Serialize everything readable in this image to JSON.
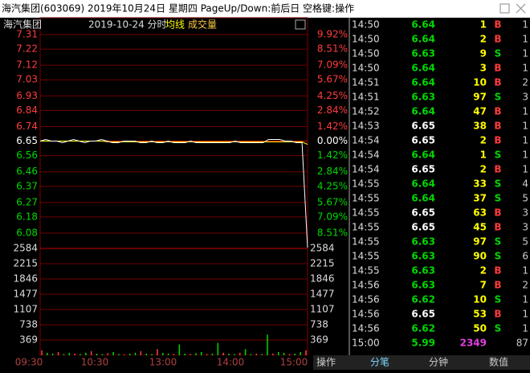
{
  "title_bar": {
    "title": "海汽集团(603069)  2019年10月24日 星期四 PageUp/Down:前后日 空格键:操作"
  },
  "chart_header": {
    "name": "海汽集团",
    "date": "2019-10-24 分时",
    "avg_label": "均线",
    "vol_label": "成交量"
  },
  "price_axis": {
    "ylim": [
      6.08,
      7.31
    ],
    "ticks": [
      7.31,
      7.22,
      7.12,
      7.03,
      6.93,
      6.84,
      6.74,
      6.65,
      6.56,
      6.46,
      6.37,
      6.27,
      6.18,
      6.08
    ],
    "pct_labels": [
      "9.92%",
      "8.51%",
      "7.09%",
      "5.67%",
      "4.25%",
      "2.84%",
      "1.42%",
      "0.00%",
      "1.42%",
      "2.84%",
      "4.25%",
      "5.67%",
      "7.09%",
      "8.51%"
    ]
  },
  "volume_axis": {
    "ylim": [
      0,
      2584
    ],
    "ticks": [
      2584,
      2215,
      1846,
      1477,
      1107,
      738,
      369
    ]
  },
  "price_line": [
    6.65,
    6.66,
    6.65,
    6.65,
    6.64,
    6.65,
    6.66,
    6.65,
    6.64,
    6.65,
    6.65,
    6.66,
    6.65,
    6.64,
    6.64,
    6.65,
    6.65,
    6.65,
    6.64,
    6.64,
    6.65,
    6.64,
    6.64,
    6.65,
    6.64,
    6.64,
    6.64,
    6.65,
    6.64,
    6.64,
    6.64,
    6.64,
    6.64,
    6.64,
    6.64,
    6.65,
    6.64,
    6.64,
    6.64,
    6.64,
    6.64,
    6.66,
    6.66,
    6.66,
    6.65,
    6.65,
    6.64,
    6.64,
    5.99
  ],
  "avg_line": [
    6.65,
    6.65,
    6.65,
    6.65,
    6.65,
    6.65,
    6.65,
    6.65,
    6.65,
    6.65,
    6.65,
    6.65,
    6.646,
    6.645,
    6.645,
    6.645,
    6.645,
    6.645,
    6.645,
    6.645,
    6.645,
    6.645,
    6.645,
    6.645,
    6.645,
    6.645,
    6.645,
    6.645,
    6.645,
    6.645,
    6.645,
    6.645,
    6.645,
    6.645,
    6.645,
    6.645,
    6.645,
    6.645,
    6.645,
    6.645,
    6.645,
    6.645,
    6.645,
    6.645,
    6.645,
    6.645,
    6.645,
    6.645,
    6.63
  ],
  "volume_bars": [
    120,
    60,
    40,
    80,
    30,
    60,
    40,
    30,
    60,
    100,
    40,
    30,
    50,
    80,
    30,
    20,
    40,
    60,
    100,
    40,
    30,
    150,
    60,
    40,
    30,
    260,
    40,
    30,
    50,
    80,
    30,
    40,
    300,
    60,
    40,
    30,
    60,
    150,
    30,
    40,
    30,
    500,
    40,
    80,
    60,
    30,
    40,
    80,
    120
  ],
  "time_labels": [
    "09:30",
    "10:30",
    "13:00",
    "14:00",
    "15:00"
  ],
  "trades": [
    [
      "14:50",
      "6.64",
      "1",
      "B",
      "1"
    ],
    [
      "14:50",
      "6.64",
      "2",
      "B",
      "1"
    ],
    [
      "14:50",
      "6.63",
      "9",
      "S",
      "1"
    ],
    [
      "14:50",
      "6.64",
      "3",
      "B",
      "1"
    ],
    [
      "14:51",
      "6.64",
      "10",
      "B",
      "2"
    ],
    [
      "14:51",
      "6.63",
      "97",
      "S",
      "3"
    ],
    [
      "14:52",
      "6.64",
      "47",
      "B",
      "1"
    ],
    [
      "14:53",
      "6.65",
      "38",
      "B",
      "1"
    ],
    [
      "14:54",
      "6.65",
      "2",
      "B",
      "1"
    ],
    [
      "14:54",
      "6.64",
      "1",
      "S",
      "1"
    ],
    [
      "14:54",
      "6.65",
      "2",
      "B",
      "1"
    ],
    [
      "14:55",
      "6.64",
      "33",
      "S",
      "4"
    ],
    [
      "14:55",
      "6.64",
      "37",
      "S",
      "5"
    ],
    [
      "14:55",
      "6.65",
      "63",
      "B",
      "3"
    ],
    [
      "14:55",
      "6.65",
      "45",
      "B",
      "3"
    ],
    [
      "14:55",
      "6.63",
      "97",
      "S",
      "5"
    ],
    [
      "14:55",
      "6.63",
      "90",
      "S",
      "6"
    ],
    [
      "14:55",
      "6.63",
      "2",
      "B",
      "1"
    ],
    [
      "14:56",
      "6.63",
      "7",
      "B",
      "2"
    ],
    [
      "14:56",
      "6.62",
      "10",
      "S",
      "1"
    ],
    [
      "14:56",
      "6.65",
      "53",
      "B",
      "1"
    ],
    [
      "14:56",
      "6.62",
      "50",
      "S",
      "1"
    ],
    [
      "15:00",
      "5.99",
      "2349",
      "",
      "87"
    ]
  ],
  "tabs": [
    "操作",
    "分笔",
    "分钟",
    "数值"
  ]
}
